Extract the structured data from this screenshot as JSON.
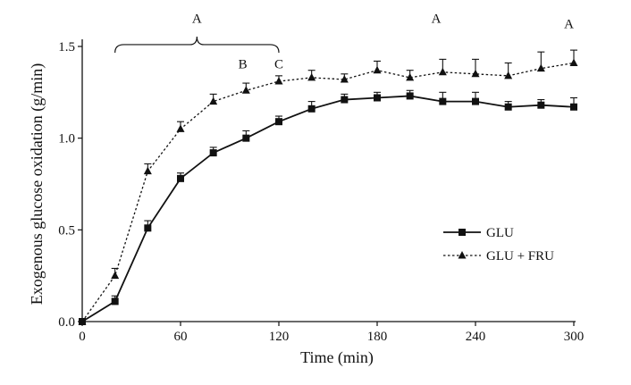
{
  "chart_data": {
    "type": "line",
    "title": "",
    "xlabel": "Time (min)",
    "ylabel": "Exogenous glucose oxidation (g/min)",
    "xlim": [
      0,
      300
    ],
    "ylim": [
      0,
      1.5
    ],
    "xticks": [
      0,
      60,
      120,
      180,
      240,
      300
    ],
    "xtick_labels": [
      "0",
      "60",
      "120",
      "180",
      "240",
      "300"
    ],
    "yticks": [
      0,
      0.5,
      1.0,
      1.5
    ],
    "ytick_labels": [
      "0.0",
      "0.5",
      "1.0",
      "1.5"
    ],
    "grid": false,
    "legend_position": "middle-right",
    "series": [
      {
        "name": "GLU",
        "marker": "square",
        "line": "solid",
        "x": [
          0,
          20,
          40,
          60,
          80,
          100,
          120,
          140,
          160,
          180,
          200,
          220,
          240,
          260,
          280,
          300
        ],
        "values": [
          0.0,
          0.11,
          0.51,
          0.78,
          0.92,
          1.0,
          1.09,
          1.16,
          1.21,
          1.22,
          1.23,
          1.2,
          1.2,
          1.17,
          1.18,
          1.17
        ],
        "errors": [
          0.0,
          0.03,
          0.04,
          0.03,
          0.03,
          0.04,
          0.03,
          0.04,
          0.03,
          0.03,
          0.03,
          0.05,
          0.05,
          0.03,
          0.03,
          0.05
        ]
      },
      {
        "name": "GLU + FRU",
        "marker": "triangle",
        "line": "dotted",
        "x": [
          0,
          20,
          40,
          60,
          80,
          100,
          120,
          140,
          160,
          180,
          200,
          220,
          240,
          260,
          280,
          300
        ],
        "values": [
          0.0,
          0.25,
          0.82,
          1.05,
          1.2,
          1.26,
          1.31,
          1.33,
          1.32,
          1.37,
          1.33,
          1.36,
          1.35,
          1.34,
          1.38,
          1.41
        ],
        "errors": [
          0.0,
          0.04,
          0.04,
          0.04,
          0.04,
          0.04,
          0.03,
          0.04,
          0.03,
          0.05,
          0.04,
          0.07,
          0.08,
          0.07,
          0.09,
          0.07
        ]
      }
    ],
    "annotations": [
      {
        "text": "A",
        "x": 70,
        "y": 1.63
      },
      {
        "text": "A",
        "x": 216,
        "y": 1.63
      },
      {
        "text": "A",
        "x": 297,
        "y": 1.6
      },
      {
        "text": "B",
        "x": 98,
        "y": 1.38
      },
      {
        "text": "C",
        "x": 120,
        "y": 1.38
      }
    ],
    "brace": {
      "x_start": 20,
      "x_end": 120,
      "y": 1.51,
      "label": "A"
    }
  }
}
